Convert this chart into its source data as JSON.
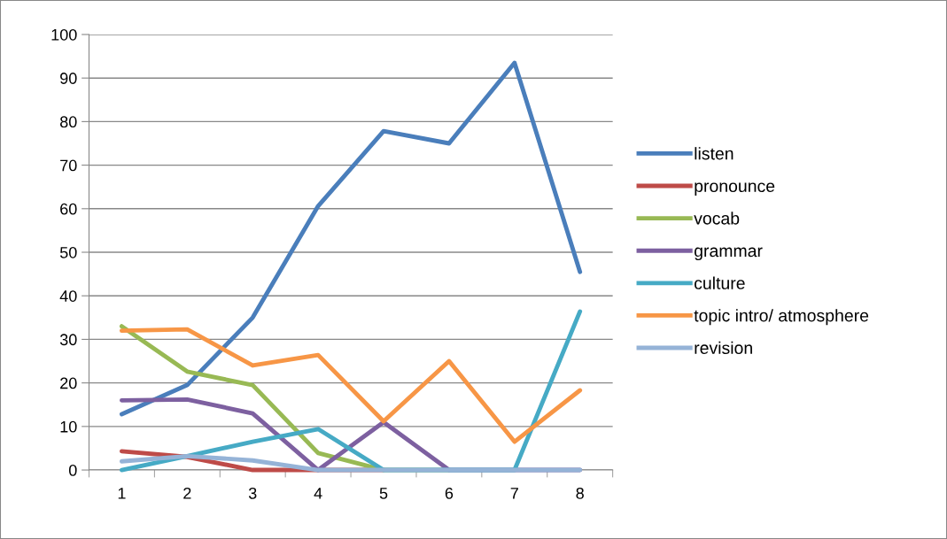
{
  "chart_data": {
    "type": "line",
    "categories": [
      "1",
      "2",
      "3",
      "4",
      "5",
      "6",
      "7",
      "8"
    ],
    "ylim": [
      0,
      100
    ],
    "yticks": [
      0,
      10,
      20,
      30,
      40,
      50,
      60,
      70,
      80,
      90,
      100
    ],
    "grid": "y",
    "legend": "right",
    "marker": "none",
    "line_style": "solid",
    "series": [
      {
        "name": "listen",
        "color": "#4a7ebb",
        "values": [
          12.8,
          19.5,
          35,
          60.6,
          77.8,
          75,
          93.5,
          45.5
        ]
      },
      {
        "name": "pronounce",
        "color": "#be4b48",
        "values": [
          4.3,
          3,
          0,
          0,
          0,
          null,
          null,
          null
        ]
      },
      {
        "name": "vocab",
        "color": "#98b954",
        "values": [
          33,
          22.6,
          19.5,
          3.9,
          0,
          0,
          null,
          null
        ]
      },
      {
        "name": "grammar",
        "color": "#7d60a0",
        "values": [
          16,
          16.2,
          13,
          0,
          11,
          0,
          0,
          0
        ]
      },
      {
        "name": "culture",
        "color": "#46aac5",
        "values": [
          0,
          3.2,
          6.5,
          9.4,
          0,
          0,
          0,
          36.4
        ]
      },
      {
        "name": "topic intro/ atmosphere",
        "color": "#f79646",
        "values": [
          32,
          32.3,
          24,
          26.4,
          11.2,
          25,
          6.5,
          18.3
        ]
      },
      {
        "name": "revision",
        "color": "#95b3d7",
        "values": [
          2,
          3.2,
          2.2,
          0,
          0,
          0,
          0,
          0
        ]
      }
    ]
  }
}
